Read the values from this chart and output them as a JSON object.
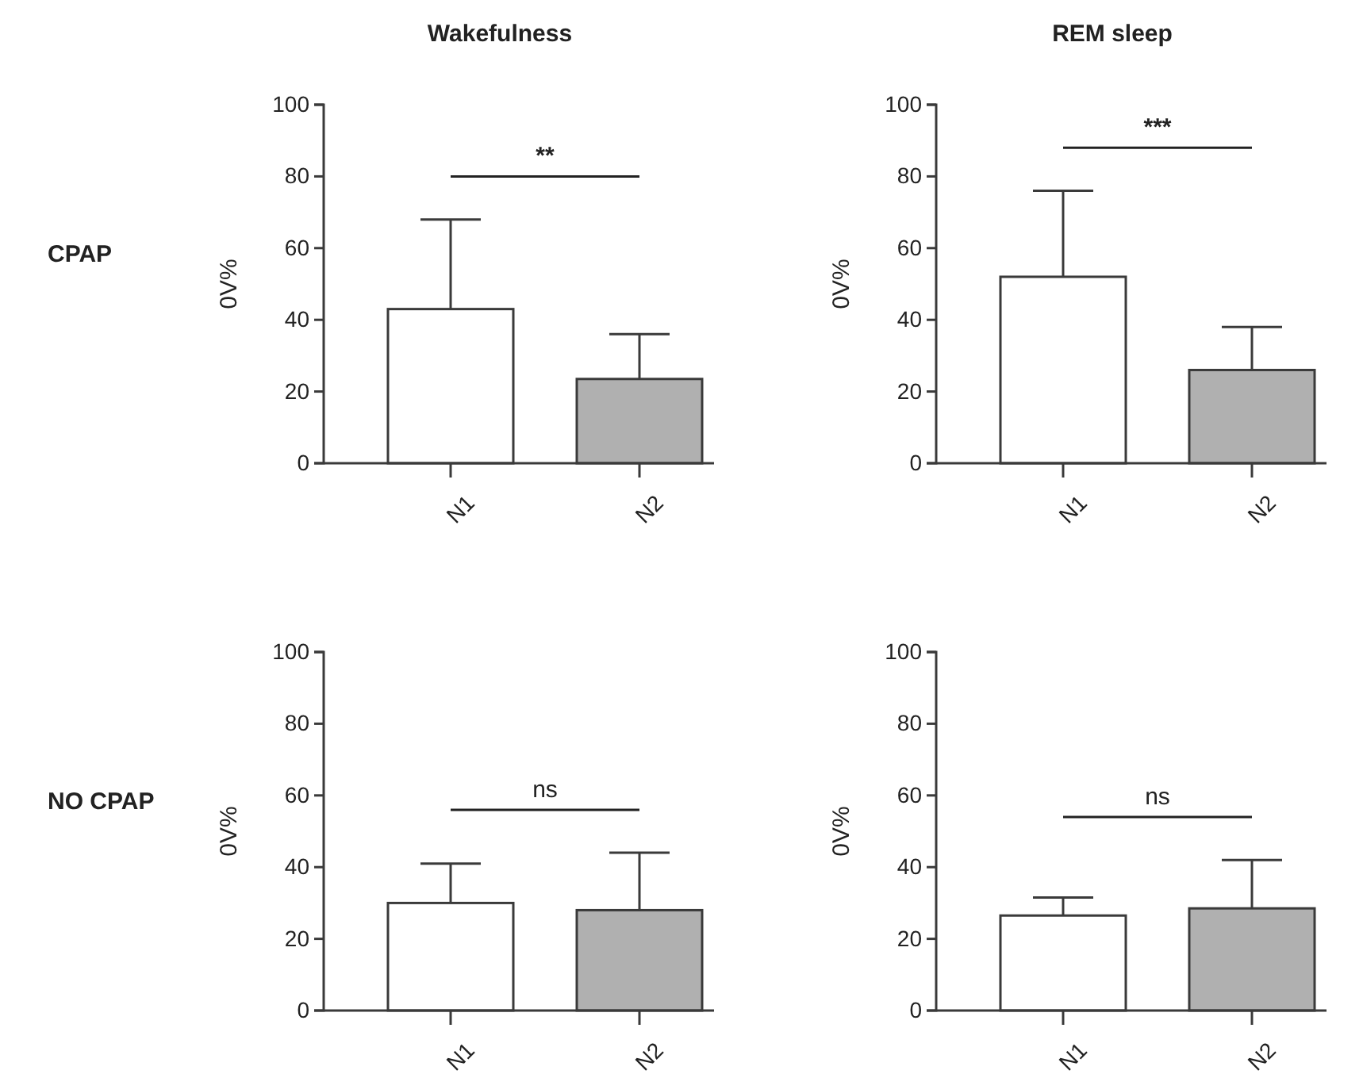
{
  "chart_data": [
    {
      "type": "bar",
      "title": "Wakefulness",
      "ylabel": "0V%",
      "categories": [
        "N1",
        "N2"
      ],
      "values": [
        43,
        23.5
      ],
      "colors": [
        "#ffffff",
        "#b0b0b0"
      ],
      "errors": [
        [
          43,
          68
        ],
        [
          23.5,
          36
        ]
      ],
      "ylim": [
        0,
        100
      ],
      "yticks": [
        0,
        20,
        40,
        60,
        80,
        100
      ],
      "annotations": [
        "**",
        "CPAP"
      ]
    },
    {
      "type": "bar",
      "title": "REM sleep",
      "ylabel": "0V%",
      "categories": [
        "N1",
        "N2"
      ],
      "values": [
        52,
        26
      ],
      "colors": [
        "#ffffff",
        "#b0b0b0"
      ],
      "errors": [
        [
          52,
          76
        ],
        [
          26,
          38
        ]
      ],
      "ylim": [
        0,
        100
      ],
      "yticks": [
        0,
        20,
        40,
        60,
        80,
        100
      ],
      "annotations": [
        "***"
      ]
    },
    {
      "type": "bar",
      "ylabel": "0V%",
      "categories": [
        "N1",
        "N2"
      ],
      "values": [
        30,
        28
      ],
      "colors": [
        "#ffffff",
        "#b0b0b0"
      ],
      "errors": [
        [
          30,
          41
        ],
        [
          28,
          44
        ]
      ],
      "ylim": [
        0,
        100
      ],
      "yticks": [
        0,
        20,
        40,
        60,
        80,
        100
      ],
      "annotations": [
        "ns",
        "NO CPAP"
      ]
    },
    {
      "type": "bar",
      "ylabel": "0V%",
      "categories": [
        "N1",
        "N2"
      ],
      "values": [
        26.5,
        28.5
      ],
      "colors": [
        "#ffffff",
        "#b0b0b0"
      ],
      "errors": [
        [
          26.5,
          31.5
        ],
        [
          28.5,
          42
        ]
      ],
      "ylim": [
        0,
        100
      ],
      "yticks": [
        0,
        20,
        40,
        60,
        80,
        100
      ],
      "annotations": [
        "ns"
      ]
    }
  ]
}
